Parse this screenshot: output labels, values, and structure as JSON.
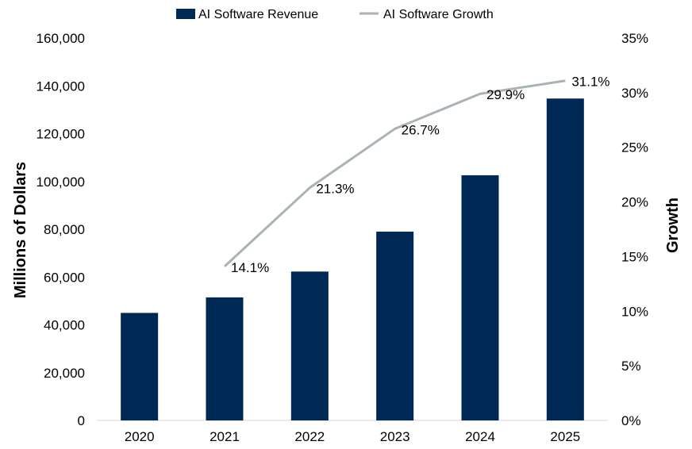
{
  "chart_data": {
    "type": "bar",
    "categories": [
      "2020",
      "2021",
      "2022",
      "2023",
      "2024",
      "2025"
    ],
    "series": [
      {
        "name": "AI Software Revenue",
        "type": "bar",
        "axis": "left",
        "color": "#002855",
        "values": [
          45000,
          51500,
          62300,
          79000,
          102600,
          134700
        ]
      },
      {
        "name": "AI Software Growth",
        "type": "line",
        "axis": "right",
        "color": "#A9B3B0",
        "values": [
          null,
          14.1,
          21.3,
          26.7,
          29.9,
          31.1
        ],
        "labels": [
          "",
          "14.1%",
          "21.3%",
          "26.7%",
          "29.9%",
          "31.1%"
        ]
      }
    ],
    "title": "",
    "xlabel": "",
    "ylabel": "Millions of Dollars",
    "y2label": "Growth",
    "ylim": [
      0,
      160000
    ],
    "y2lim": [
      0,
      35
    ],
    "yticks": [
      "0",
      "20,000",
      "40,000",
      "60,000",
      "80,000",
      "100,000",
      "120,000",
      "140,000",
      "160,000"
    ],
    "y2ticks": [
      "0%",
      "5%",
      "10%",
      "15%",
      "20%",
      "25%",
      "30%",
      "35%"
    ],
    "grid": false,
    "legend": "top-center"
  }
}
